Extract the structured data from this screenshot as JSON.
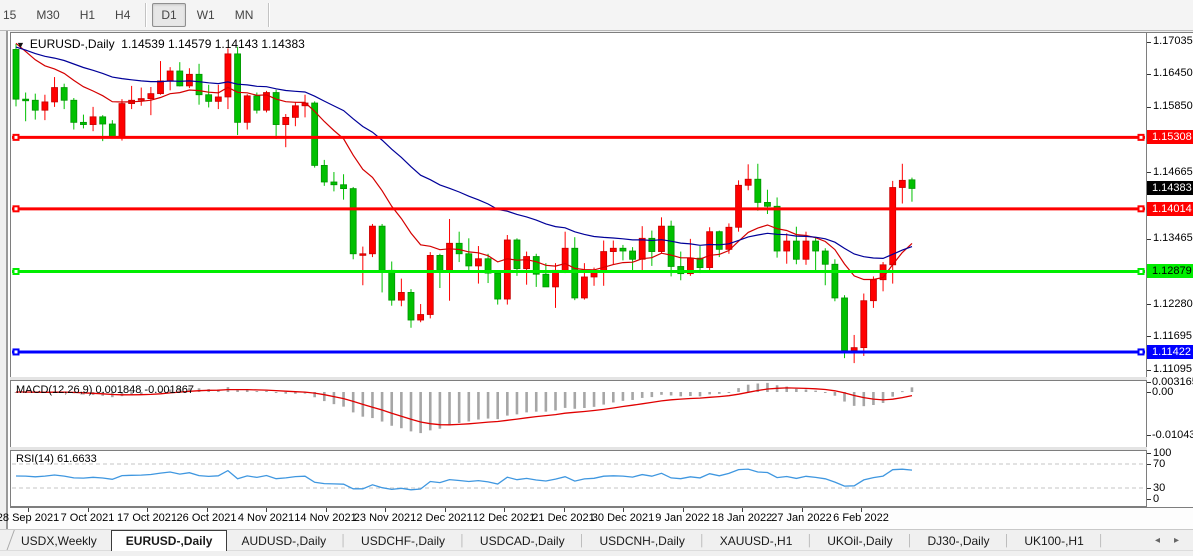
{
  "toolbar": {
    "timeframes": [
      {
        "label": "15",
        "active": false
      },
      {
        "label": "M30",
        "active": false
      },
      {
        "label": "H1",
        "active": false
      },
      {
        "label": "H4",
        "active": false
      },
      {
        "label": "D1",
        "active": true
      },
      {
        "label": "W1",
        "active": false
      },
      {
        "label": "MN",
        "active": false
      }
    ]
  },
  "chart": {
    "title_symbol": "EURUSD-,Daily",
    "ohlc_display": "1.14539 1.14579 1.14143 1.14383",
    "dropdown_icon": "▼"
  },
  "price_axis": {
    "ticks": [
      {
        "label": "1.17035",
        "price": 1.17035
      },
      {
        "label": "1.16450",
        "price": 1.1645
      },
      {
        "label": "1.15850",
        "price": 1.1585
      },
      {
        "label": "1.14665",
        "price": 1.14665
      },
      {
        "label": "1.13465",
        "price": 1.13465
      },
      {
        "label": "1.12280",
        "price": 1.1228
      },
      {
        "label": "1.11695",
        "price": 1.11695
      },
      {
        "label": "1.11095",
        "price": 1.11095
      }
    ],
    "badges": [
      {
        "label": "1.15308",
        "price": 1.15308,
        "bg": "#ff0000",
        "fg": "#ffffff"
      },
      {
        "label": "1.14383",
        "price": 1.14383,
        "bg": "#000000",
        "fg": "#ffffff"
      },
      {
        "label": "1.14014",
        "price": 1.14014,
        "bg": "#ff0000",
        "fg": "#ffffff"
      },
      {
        "label": "1.12879",
        "price": 1.12879,
        "bg": "#00ee00",
        "fg": "#000000"
      },
      {
        "label": "1.11422",
        "price": 1.11422,
        "bg": "#0000ff",
        "fg": "#ffffff"
      }
    ]
  },
  "macd": {
    "label": "MACD(12,26,9) 0.001848 -0.001867",
    "scale": [
      "0.003165",
      "0.00",
      "-0.01043"
    ]
  },
  "rsi": {
    "label": "RSI(14) 61.6633",
    "scale": [
      "100",
      "70",
      "30",
      "0"
    ]
  },
  "tabs": {
    "items": [
      {
        "label": "USDX,Weekly",
        "active": false
      },
      {
        "label": "EURUSD-,Daily",
        "active": true
      },
      {
        "label": "AUDUSD-,Daily",
        "active": false
      },
      {
        "label": "USDCHF-,Daily",
        "active": false
      },
      {
        "label": "USDCAD-,Daily",
        "active": false
      },
      {
        "label": "USDCNH-,Daily",
        "active": false
      },
      {
        "label": "XAUUSD-,H1",
        "active": false
      },
      {
        "label": "UKOil-,Daily",
        "active": false
      },
      {
        "label": "DJ30-,Daily",
        "active": false
      },
      {
        "label": "UK100-,H1",
        "active": false
      }
    ],
    "scroll_left": "◂",
    "scroll_right": "▸"
  },
  "chart_data": {
    "type": "candlestick",
    "symbol": "EURUSD-",
    "timeframe": "Daily",
    "title": "EURUSD-,Daily 1.14539 1.14579 1.14143 1.14383",
    "note": "This chart colors bullish candles red and bearish candles green",
    "up_color": "#ff0000",
    "down_color": "#00c000",
    "price_range_visible": [
      1.11095,
      1.17035
    ],
    "x_tick_labels": [
      "28 Sep 2021",
      "7 Oct 2021",
      "17 Oct 2021",
      "26 Oct 2021",
      "4 Nov 2021",
      "14 Nov 2021",
      "23 Nov 2021",
      "2 Dec 2021",
      "12 Dec 2021",
      "21 Dec 2021",
      "30 Dec 2021",
      "9 Jan 2022",
      "18 Jan 2022",
      "27 Jan 2022",
      "6 Feb 2022"
    ],
    "hlines": [
      {
        "price": 1.15308,
        "color": "#ff0000",
        "width": 3
      },
      {
        "price": 1.14014,
        "color": "#ff0000",
        "width": 3
      },
      {
        "price": 1.12879,
        "color": "#00ee00",
        "width": 3
      },
      {
        "price": 1.11422,
        "color": "#0000ff",
        "width": 3
      }
    ],
    "current_price": 1.14383,
    "indicators": {
      "ma_fast": {
        "color": "#d40000"
      },
      "ma_slow": {
        "color": "#000099"
      },
      "macd": {
        "params": [
          12,
          26,
          9
        ],
        "main": 0.001848,
        "signal": -0.001867,
        "hist_color": "#a6a6a6",
        "signal_color": "#e00000",
        "scale_max": 0.003165,
        "scale_min": -0.010435
      },
      "rsi": {
        "period": 14,
        "value": 61.6633,
        "color": "#3f97e0",
        "levels": [
          70,
          30
        ]
      }
    },
    "ohlc": [
      [
        1.169,
        1.17,
        1.1587,
        1.16
      ],
      [
        1.16,
        1.1612,
        1.156,
        1.1598
      ],
      [
        1.1598,
        1.161,
        1.1563,
        1.158
      ],
      [
        1.158,
        1.1608,
        1.1562,
        1.1595
      ],
      [
        1.1595,
        1.164,
        1.1586,
        1.1621
      ],
      [
        1.1621,
        1.1628,
        1.1582,
        1.1598
      ],
      [
        1.1598,
        1.1602,
        1.1545,
        1.1558
      ],
      [
        1.1558,
        1.1572,
        1.1547,
        1.1554
      ],
      [
        1.1554,
        1.1586,
        1.1542,
        1.1568
      ],
      [
        1.1568,
        1.1571,
        1.1524,
        1.1555
      ],
      [
        1.1555,
        1.1562,
        1.1529,
        1.153
      ],
      [
        1.153,
        1.16,
        1.1525,
        1.1592
      ],
      [
        1.1592,
        1.1624,
        1.1582,
        1.1598
      ],
      [
        1.1598,
        1.1621,
        1.1588,
        1.1601
      ],
      [
        1.1601,
        1.1622,
        1.1571,
        1.161
      ],
      [
        1.161,
        1.1669,
        1.1608,
        1.1633
      ],
      [
        1.1633,
        1.1658,
        1.1616,
        1.1651
      ],
      [
        1.1651,
        1.1667,
        1.1623,
        1.1624
      ],
      [
        1.1624,
        1.1656,
        1.162,
        1.1645
      ],
      [
        1.1645,
        1.1664,
        1.159,
        1.1608
      ],
      [
        1.1608,
        1.1626,
        1.1585,
        1.1596
      ],
      [
        1.1596,
        1.1626,
        1.1582,
        1.1604
      ],
      [
        1.1604,
        1.1692,
        1.1582,
        1.1682
      ],
      [
        1.1682,
        1.1695,
        1.1535,
        1.1558
      ],
      [
        1.1558,
        1.1609,
        1.1545,
        1.1606
      ],
      [
        1.1606,
        1.1612,
        1.1574,
        1.158
      ],
      [
        1.158,
        1.1615,
        1.1576,
        1.1612
      ],
      [
        1.1612,
        1.1617,
        1.1528,
        1.1554
      ],
      [
        1.1554,
        1.1573,
        1.1513,
        1.1567
      ],
      [
        1.1567,
        1.1595,
        1.1551,
        1.1588
      ],
      [
        1.1588,
        1.1608,
        1.1567,
        1.1593
      ],
      [
        1.1593,
        1.1596,
        1.1476,
        1.148
      ],
      [
        1.148,
        1.149,
        1.1443,
        1.145
      ],
      [
        1.145,
        1.1468,
        1.1433,
        1.1445
      ],
      [
        1.1445,
        1.1464,
        1.1418,
        1.1438
      ],
      [
        1.1438,
        1.1441,
        1.131,
        1.132
      ],
      [
        1.132,
        1.1333,
        1.1263,
        1.132
      ],
      [
        1.132,
        1.1374,
        1.1314,
        1.137
      ],
      [
        1.137,
        1.1374,
        1.125,
        1.129
      ],
      [
        1.129,
        1.1306,
        1.1226,
        1.1236
      ],
      [
        1.1236,
        1.1275,
        1.1225,
        1.125
      ],
      [
        1.125,
        1.1256,
        1.1186,
        1.12
      ],
      [
        1.12,
        1.1229,
        1.1196,
        1.121
      ],
      [
        1.121,
        1.1323,
        1.1203,
        1.1317
      ],
      [
        1.1317,
        1.132,
        1.1258,
        1.129
      ],
      [
        1.129,
        1.1383,
        1.1235,
        1.1339
      ],
      [
        1.1339,
        1.136,
        1.1305,
        1.132
      ],
      [
        1.132,
        1.1348,
        1.1289,
        1.1298
      ],
      [
        1.1298,
        1.1334,
        1.1266,
        1.1311
      ],
      [
        1.1311,
        1.132,
        1.1267,
        1.1285
      ],
      [
        1.1285,
        1.129,
        1.1228,
        1.1238
      ],
      [
        1.1238,
        1.1354,
        1.1228,
        1.1345
      ],
      [
        1.1345,
        1.1348,
        1.128,
        1.1293
      ],
      [
        1.1293,
        1.1324,
        1.1264,
        1.1315
      ],
      [
        1.1315,
        1.132,
        1.126,
        1.1283
      ],
      [
        1.1283,
        1.1303,
        1.1262,
        1.126
      ],
      [
        1.126,
        1.1303,
        1.1222,
        1.129
      ],
      [
        1.129,
        1.136,
        1.1285,
        1.133
      ],
      [
        1.133,
        1.135,
        1.1236,
        1.124
      ],
      [
        1.124,
        1.1303,
        1.1237,
        1.1278
      ],
      [
        1.1278,
        1.1295,
        1.1262,
        1.1288
      ],
      [
        1.1288,
        1.1344,
        1.1262,
        1.1324
      ],
      [
        1.1324,
        1.1344,
        1.13,
        1.133
      ],
      [
        1.133,
        1.1336,
        1.1308,
        1.1325
      ],
      [
        1.1325,
        1.1332,
        1.129,
        1.131
      ],
      [
        1.131,
        1.137,
        1.1286,
        1.1348
      ],
      [
        1.1348,
        1.1362,
        1.1298,
        1.1324
      ],
      [
        1.1324,
        1.1386,
        1.1321,
        1.137
      ],
      [
        1.137,
        1.138,
        1.1279,
        1.1297
      ],
      [
        1.1297,
        1.1324,
        1.1272,
        1.1284
      ],
      [
        1.1284,
        1.1347,
        1.128,
        1.1312
      ],
      [
        1.1312,
        1.1334,
        1.1285,
        1.1295
      ],
      [
        1.1295,
        1.1368,
        1.1289,
        1.136
      ],
      [
        1.136,
        1.1362,
        1.1314,
        1.1328
      ],
      [
        1.1328,
        1.1375,
        1.132,
        1.1368
      ],
      [
        1.1368,
        1.1453,
        1.136,
        1.1444
      ],
      [
        1.1444,
        1.1482,
        1.1435,
        1.1455
      ],
      [
        1.1455,
        1.1483,
        1.1398,
        1.1413
      ],
      [
        1.1413,
        1.1436,
        1.1392,
        1.1406
      ],
      [
        1.1406,
        1.1422,
        1.1313,
        1.1325
      ],
      [
        1.1325,
        1.1357,
        1.1302,
        1.1343
      ],
      [
        1.1343,
        1.1369,
        1.1301,
        1.131
      ],
      [
        1.131,
        1.136,
        1.13,
        1.1343
      ],
      [
        1.1343,
        1.1349,
        1.129,
        1.1325
      ],
      [
        1.1325,
        1.133,
        1.1263,
        1.1301
      ],
      [
        1.1301,
        1.131,
        1.1234,
        1.124
      ],
      [
        1.124,
        1.1245,
        1.1131,
        1.1145
      ],
      [
        1.1145,
        1.1173,
        1.1122,
        1.115
      ],
      [
        1.115,
        1.1248,
        1.1135,
        1.1235
      ],
      [
        1.1235,
        1.1279,
        1.1222,
        1.1273
      ],
      [
        1.1273,
        1.1305,
        1.1252,
        1.13
      ],
      [
        1.13,
        1.1452,
        1.1266,
        1.144
      ],
      [
        1.144,
        1.1483,
        1.1411,
        1.1453
      ],
      [
        1.14539,
        1.14579,
        1.14143,
        1.14383
      ]
    ]
  }
}
